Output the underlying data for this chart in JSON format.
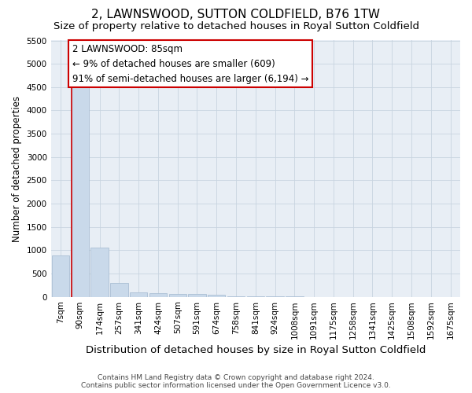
{
  "title": "2, LAWNSWOOD, SUTTON COLDFIELD, B76 1TW",
  "subtitle": "Size of property relative to detached houses in Royal Sutton Coldfield",
  "xlabel": "Distribution of detached houses by size in Royal Sutton Coldfield",
  "ylabel": "Number of detached properties",
  "footnote1": "Contains HM Land Registry data © Crown copyright and database right 2024.",
  "footnote2": "Contains public sector information licensed under the Open Government Licence v3.0.",
  "categories": [
    "7sqm",
    "90sqm",
    "174sqm",
    "257sqm",
    "341sqm",
    "424sqm",
    "507sqm",
    "591sqm",
    "674sqm",
    "758sqm",
    "841sqm",
    "924sqm",
    "1008sqm",
    "1091sqm",
    "1175sqm",
    "1258sqm",
    "1341sqm",
    "1425sqm",
    "1508sqm",
    "1592sqm",
    "1675sqm"
  ],
  "values": [
    880,
    4560,
    1060,
    290,
    95,
    80,
    55,
    55,
    50,
    3,
    2,
    1,
    1,
    0,
    0,
    0,
    0,
    0,
    0,
    0,
    0
  ],
  "bar_color": "#c9d9ea",
  "bar_edge_color": "#aabfd4",
  "property_line_color": "#cc0000",
  "annotation_line1": "2 LAWNSWOOD: 85sqm",
  "annotation_line2": "← 9% of detached houses are smaller (609)",
  "annotation_line3": "91% of semi-detached houses are larger (6,194) →",
  "annotation_box_facecolor": "#ffffff",
  "annotation_box_edgecolor": "#cc0000",
  "ylim": [
    0,
    5500
  ],
  "yticks": [
    0,
    500,
    1000,
    1500,
    2000,
    2500,
    3000,
    3500,
    4000,
    4500,
    5000,
    5500
  ],
  "title_fontsize": 11,
  "subtitle_fontsize": 9.5,
  "xlabel_fontsize": 9.5,
  "ylabel_fontsize": 8.5,
  "tick_fontsize": 7.5,
  "annotation_fontsize": 8.5,
  "footnote_fontsize": 6.5,
  "background_color": "#ffffff",
  "axes_facecolor": "#e8eef5",
  "grid_color": "#c8d4e0"
}
